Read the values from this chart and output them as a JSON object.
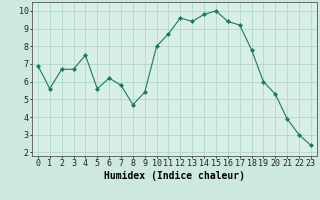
{
  "xlabel": "Humidex (Indice chaleur)",
  "x": [
    0,
    1,
    2,
    3,
    4,
    5,
    6,
    7,
    8,
    9,
    10,
    11,
    12,
    13,
    14,
    15,
    16,
    17,
    18,
    19,
    20,
    21,
    22,
    23
  ],
  "y": [
    6.9,
    5.6,
    6.7,
    6.7,
    7.5,
    5.6,
    6.2,
    5.8,
    4.7,
    5.4,
    8.0,
    8.7,
    9.6,
    9.4,
    9.8,
    10.0,
    9.4,
    9.2,
    7.8,
    6.0,
    5.3,
    3.9,
    3.0,
    2.4
  ],
  "line_color": "#1a7a5e",
  "marker": "D",
  "marker_size": 2,
  "bg_color": "#cce8df",
  "grid_color": "#aad4c8",
  "ylim": [
    1.8,
    10.5
  ],
  "yticks": [
    2,
    3,
    4,
    5,
    6,
    7,
    8,
    9,
    10
  ],
  "xlim": [
    -0.5,
    23.5
  ],
  "xlabel_fontsize": 7,
  "tick_fontsize": 6,
  "axis_bg": "#d8eee8"
}
